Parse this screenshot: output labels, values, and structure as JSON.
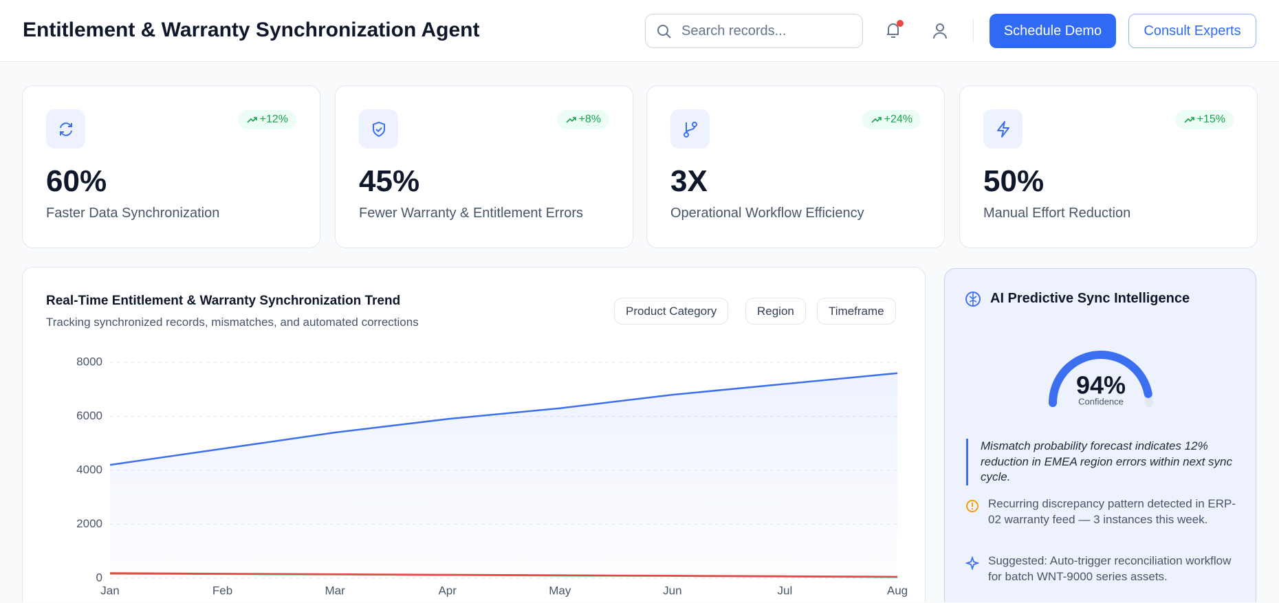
{
  "header": {
    "title": "Entitlement & Warranty Synchronization Agent",
    "search_placeholder": "Search records...",
    "buttons": [
      "Schedule Demo",
      "Consult Experts"
    ]
  },
  "kpis": [
    {
      "change": "+12%",
      "value": "60%",
      "label": "Faster Data Synchronization"
    },
    {
      "change": "+8%",
      "value": "45%",
      "label": "Fewer Warranty & Entitlement Errors"
    },
    {
      "change": "+24%",
      "value": "3X",
      "label": "Operational Workflow Efficiency"
    },
    {
      "change": "+15%",
      "value": "50%",
      "label": "Manual Effort Reduction"
    }
  ],
  "chart_data": {
    "type": "line",
    "title": "Real-Time Entitlement & Warranty Synchronization Trend",
    "subtitle": "Tracking synchronized records, mismatches, and automated corrections",
    "filters": [
      "Product Category",
      "Region",
      "Timeframe"
    ],
    "categories": [
      "Jan",
      "Feb",
      "Mar",
      "Apr",
      "May",
      "Jun",
      "Jul",
      "Aug"
    ],
    "series": [
      {
        "color": "#3b6ff0",
        "values": [
          4200,
          4800,
          5400,
          5900,
          6300,
          6800,
          7200,
          7600
        ],
        "area": true
      },
      {
        "color": "#22c55e",
        "values": [
          170,
          155,
          140,
          120,
          100,
          85,
          65,
          45
        ]
      },
      {
        "color": "#ef4444",
        "values": [
          190,
          170,
          150,
          130,
          110,
          95,
          75,
          55
        ]
      }
    ],
    "ylim": [
      0,
      8000
    ],
    "yticks": [
      0,
      2000,
      4000,
      6000,
      8000
    ],
    "grid": true
  },
  "ai_panel": {
    "title": "AI Predictive Sync Intelligence",
    "gauge": {
      "value": 94,
      "label": "94%",
      "caption": "Confidence",
      "lim": [
        0,
        100
      ],
      "color": "#3b6ff0"
    },
    "insight": "Mismatch probability forecast indicates 12% reduction in EMEA region errors within next sync cycle.",
    "items": [
      "Recurring discrepancy pattern detected in ERP-02 warranty feed — 3 instances this week.",
      "Suggested: Auto-trigger reconciliation workflow for batch WNT-9000 series assets."
    ]
  }
}
